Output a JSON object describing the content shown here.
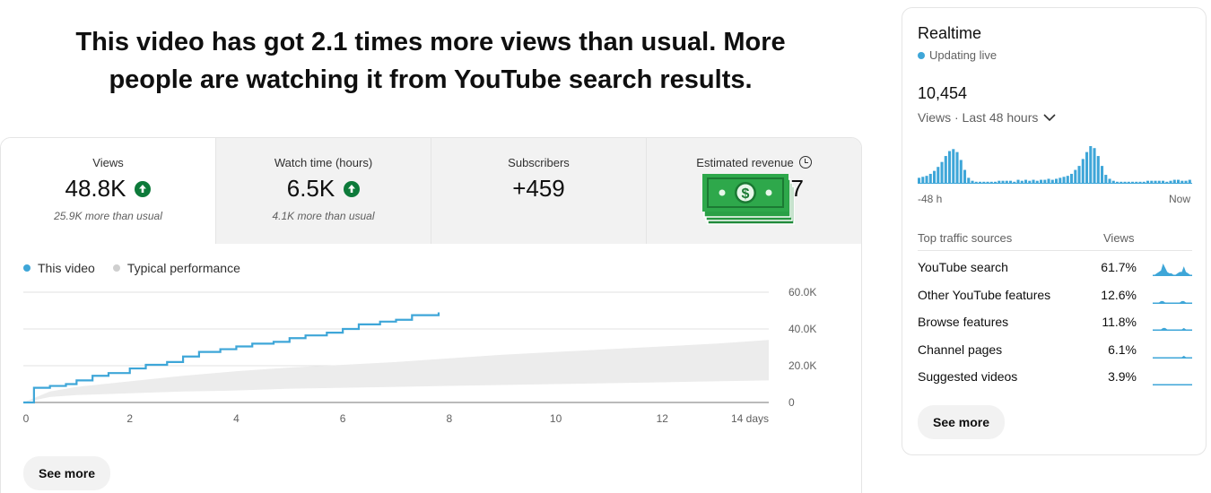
{
  "headline": {
    "line1": "This video has got 2.1 times more views than usual. More",
    "line2": "people are watching it from YouTube search results."
  },
  "metrics": [
    {
      "label": "Views",
      "value": "48.8K",
      "sub": "25.9K more than usual",
      "trend": "up"
    },
    {
      "label": "Watch time (hours)",
      "value": "6.5K",
      "sub": "4.1K more than usual",
      "trend": "up"
    },
    {
      "label": "Subscribers",
      "value": "+459",
      "sub": ""
    },
    {
      "label": "Estimated revenue",
      "value": "7",
      "sub": ""
    }
  ],
  "icons": {
    "trend": "arrow-up-icon",
    "revenue_info": "clock-icon",
    "revenue_cover": "money-stack-icon",
    "dropdown": "chevron-down-icon"
  },
  "colors": {
    "accent": "#3ea6d8",
    "typical": "#e6e6e6",
    "positive": "#0d7a3a",
    "money": "#2ea84b"
  },
  "legend": {
    "this_video": "This video",
    "typical": "Typical performance"
  },
  "chart_data": {
    "type": "line",
    "x_unit": "days",
    "xlim": [
      0,
      14
    ],
    "ylim": [
      0,
      60000
    ],
    "x_ticks": [
      "0",
      "2",
      "4",
      "6",
      "8",
      "10",
      "12",
      "14 days"
    ],
    "y_ticks": [
      "0",
      "20.0K",
      "40.0K",
      "60.0K"
    ],
    "grid": true,
    "legend_position": "top-left",
    "series": [
      {
        "name": "This video",
        "x": [
          0,
          0.2,
          0.5,
          0.8,
          1.0,
          1.3,
          1.6,
          2.0,
          2.3,
          2.7,
          3.0,
          3.3,
          3.7,
          4.0,
          4.3,
          4.7,
          5.0,
          5.3,
          5.7,
          6.0,
          6.3,
          6.7,
          7.0,
          7.3,
          7.8
        ],
        "y": [
          0,
          8000,
          9000,
          10000,
          12000,
          14500,
          16000,
          18500,
          20500,
          22000,
          25000,
          27500,
          29000,
          30500,
          32000,
          33000,
          35000,
          36500,
          38000,
          40000,
          42500,
          44000,
          45000,
          47500,
          49000
        ]
      },
      {
        "name": "Typical performance",
        "x": [
          0,
          0.5,
          1,
          2,
          3,
          4,
          5,
          6,
          7,
          8,
          9,
          10,
          11,
          12,
          13,
          14
        ],
        "lower": [
          0,
          3000,
          4000,
          5000,
          6000,
          6500,
          7500,
          8000,
          8500,
          9000,
          9500,
          10000,
          10500,
          11000,
          11500,
          12000
        ],
        "upper": [
          0,
          6000,
          8500,
          11500,
          14500,
          17000,
          19000,
          20500,
          22000,
          24000,
          26000,
          27500,
          29000,
          30500,
          32000,
          34000
        ]
      }
    ]
  },
  "see_more": "See more",
  "realtime": {
    "title": "Realtime",
    "status": "Updating live",
    "count": "10,454",
    "period": "Views · Last 48 hours",
    "axis_left": "-48 h",
    "axis_right": "Now",
    "hourly_views": [
      6,
      7,
      8,
      10,
      13,
      17,
      22,
      28,
      33,
      35,
      32,
      24,
      14,
      6,
      3,
      2,
      2,
      2,
      2,
      2,
      2,
      3,
      3,
      3,
      3,
      2,
      4,
      3,
      4,
      3,
      4,
      3,
      4,
      4,
      5,
      4,
      5,
      6,
      7,
      8,
      10,
      14,
      18,
      25,
      32,
      38,
      36,
      28,
      18,
      9,
      5,
      3,
      2,
      2,
      2,
      2,
      2,
      2,
      2,
      2,
      3,
      3,
      3,
      3,
      3,
      2,
      3,
      4,
      4,
      3,
      3,
      4
    ],
    "traffic_header": "Top traffic sources",
    "views_header": "Views",
    "sources": [
      {
        "name": "YouTube search",
        "percent": "61.7%",
        "spark": [
          1,
          1,
          2,
          3,
          4,
          9,
          6,
          3,
          2,
          2,
          1,
          1,
          2,
          3,
          3,
          7,
          3,
          2,
          1,
          1
        ]
      },
      {
        "name": "Other YouTube features",
        "percent": "12.6%",
        "spark": [
          1,
          1,
          1,
          1,
          2,
          2,
          1,
          1,
          1,
          1,
          1,
          1,
          1,
          1,
          2,
          2,
          1,
          1,
          1,
          1
        ]
      },
      {
        "name": "Browse features",
        "percent": "11.8%",
        "spark": [
          1,
          1,
          1,
          1,
          1,
          2,
          2,
          1,
          1,
          1,
          1,
          1,
          1,
          1,
          1,
          2,
          1,
          1,
          1,
          1
        ]
      },
      {
        "name": "Channel pages",
        "percent": "6.1%",
        "spark": [
          1,
          1,
          1,
          1,
          1,
          1,
          1,
          1,
          1,
          1,
          1,
          1,
          1,
          1,
          1,
          2,
          1,
          1,
          1,
          1
        ]
      },
      {
        "name": "Suggested videos",
        "percent": "3.9%",
        "spark": [
          1,
          1,
          1,
          1,
          1,
          1,
          1,
          1,
          1,
          1,
          1,
          1,
          1,
          1,
          1,
          1,
          1,
          1,
          1,
          1
        ]
      }
    ]
  }
}
